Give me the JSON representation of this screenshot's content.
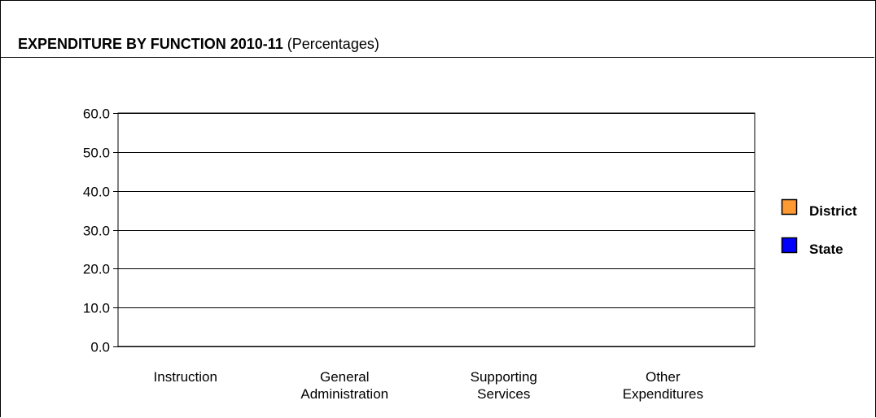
{
  "chart_data": {
    "type": "bar",
    "title": "EXPENDITURE BY FUNCTION 2010-11",
    "subtitle": "(Percentages)",
    "categories": [
      [
        "Instruction"
      ],
      [
        "General",
        "Administration"
      ],
      [
        "Supporting",
        "Services"
      ],
      [
        "Other",
        "Expenditures"
      ]
    ],
    "series": [
      {
        "name": "District",
        "color": "#FF9933",
        "values": [
          null,
          null,
          null,
          null
        ]
      },
      {
        "name": "State",
        "color": "#0000FF",
        "values": [
          null,
          null,
          null,
          null
        ]
      }
    ],
    "yticks": [
      "0.0",
      "10.0",
      "20.0",
      "30.0",
      "40.0",
      "50.0",
      "60.0"
    ],
    "ylim": [
      0,
      60
    ],
    "grid": true,
    "legend": "right"
  }
}
